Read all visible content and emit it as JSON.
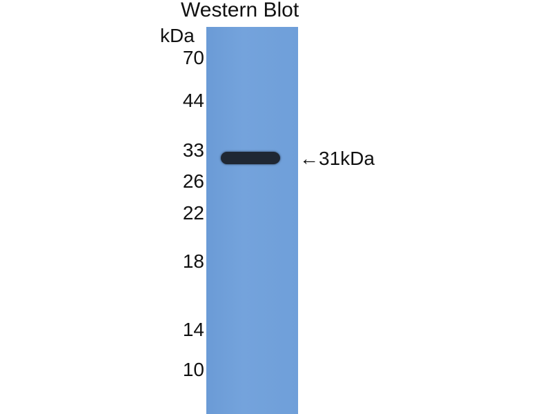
{
  "title": "Western Blot",
  "unit_label": "kDa",
  "markers": [
    "70",
    "44",
    "33",
    "26",
    "22",
    "18",
    "14",
    "10"
  ],
  "band_label": "←31kDa",
  "colors": {
    "membrane": "#6f9fd9",
    "band": "#1f2733"
  }
}
